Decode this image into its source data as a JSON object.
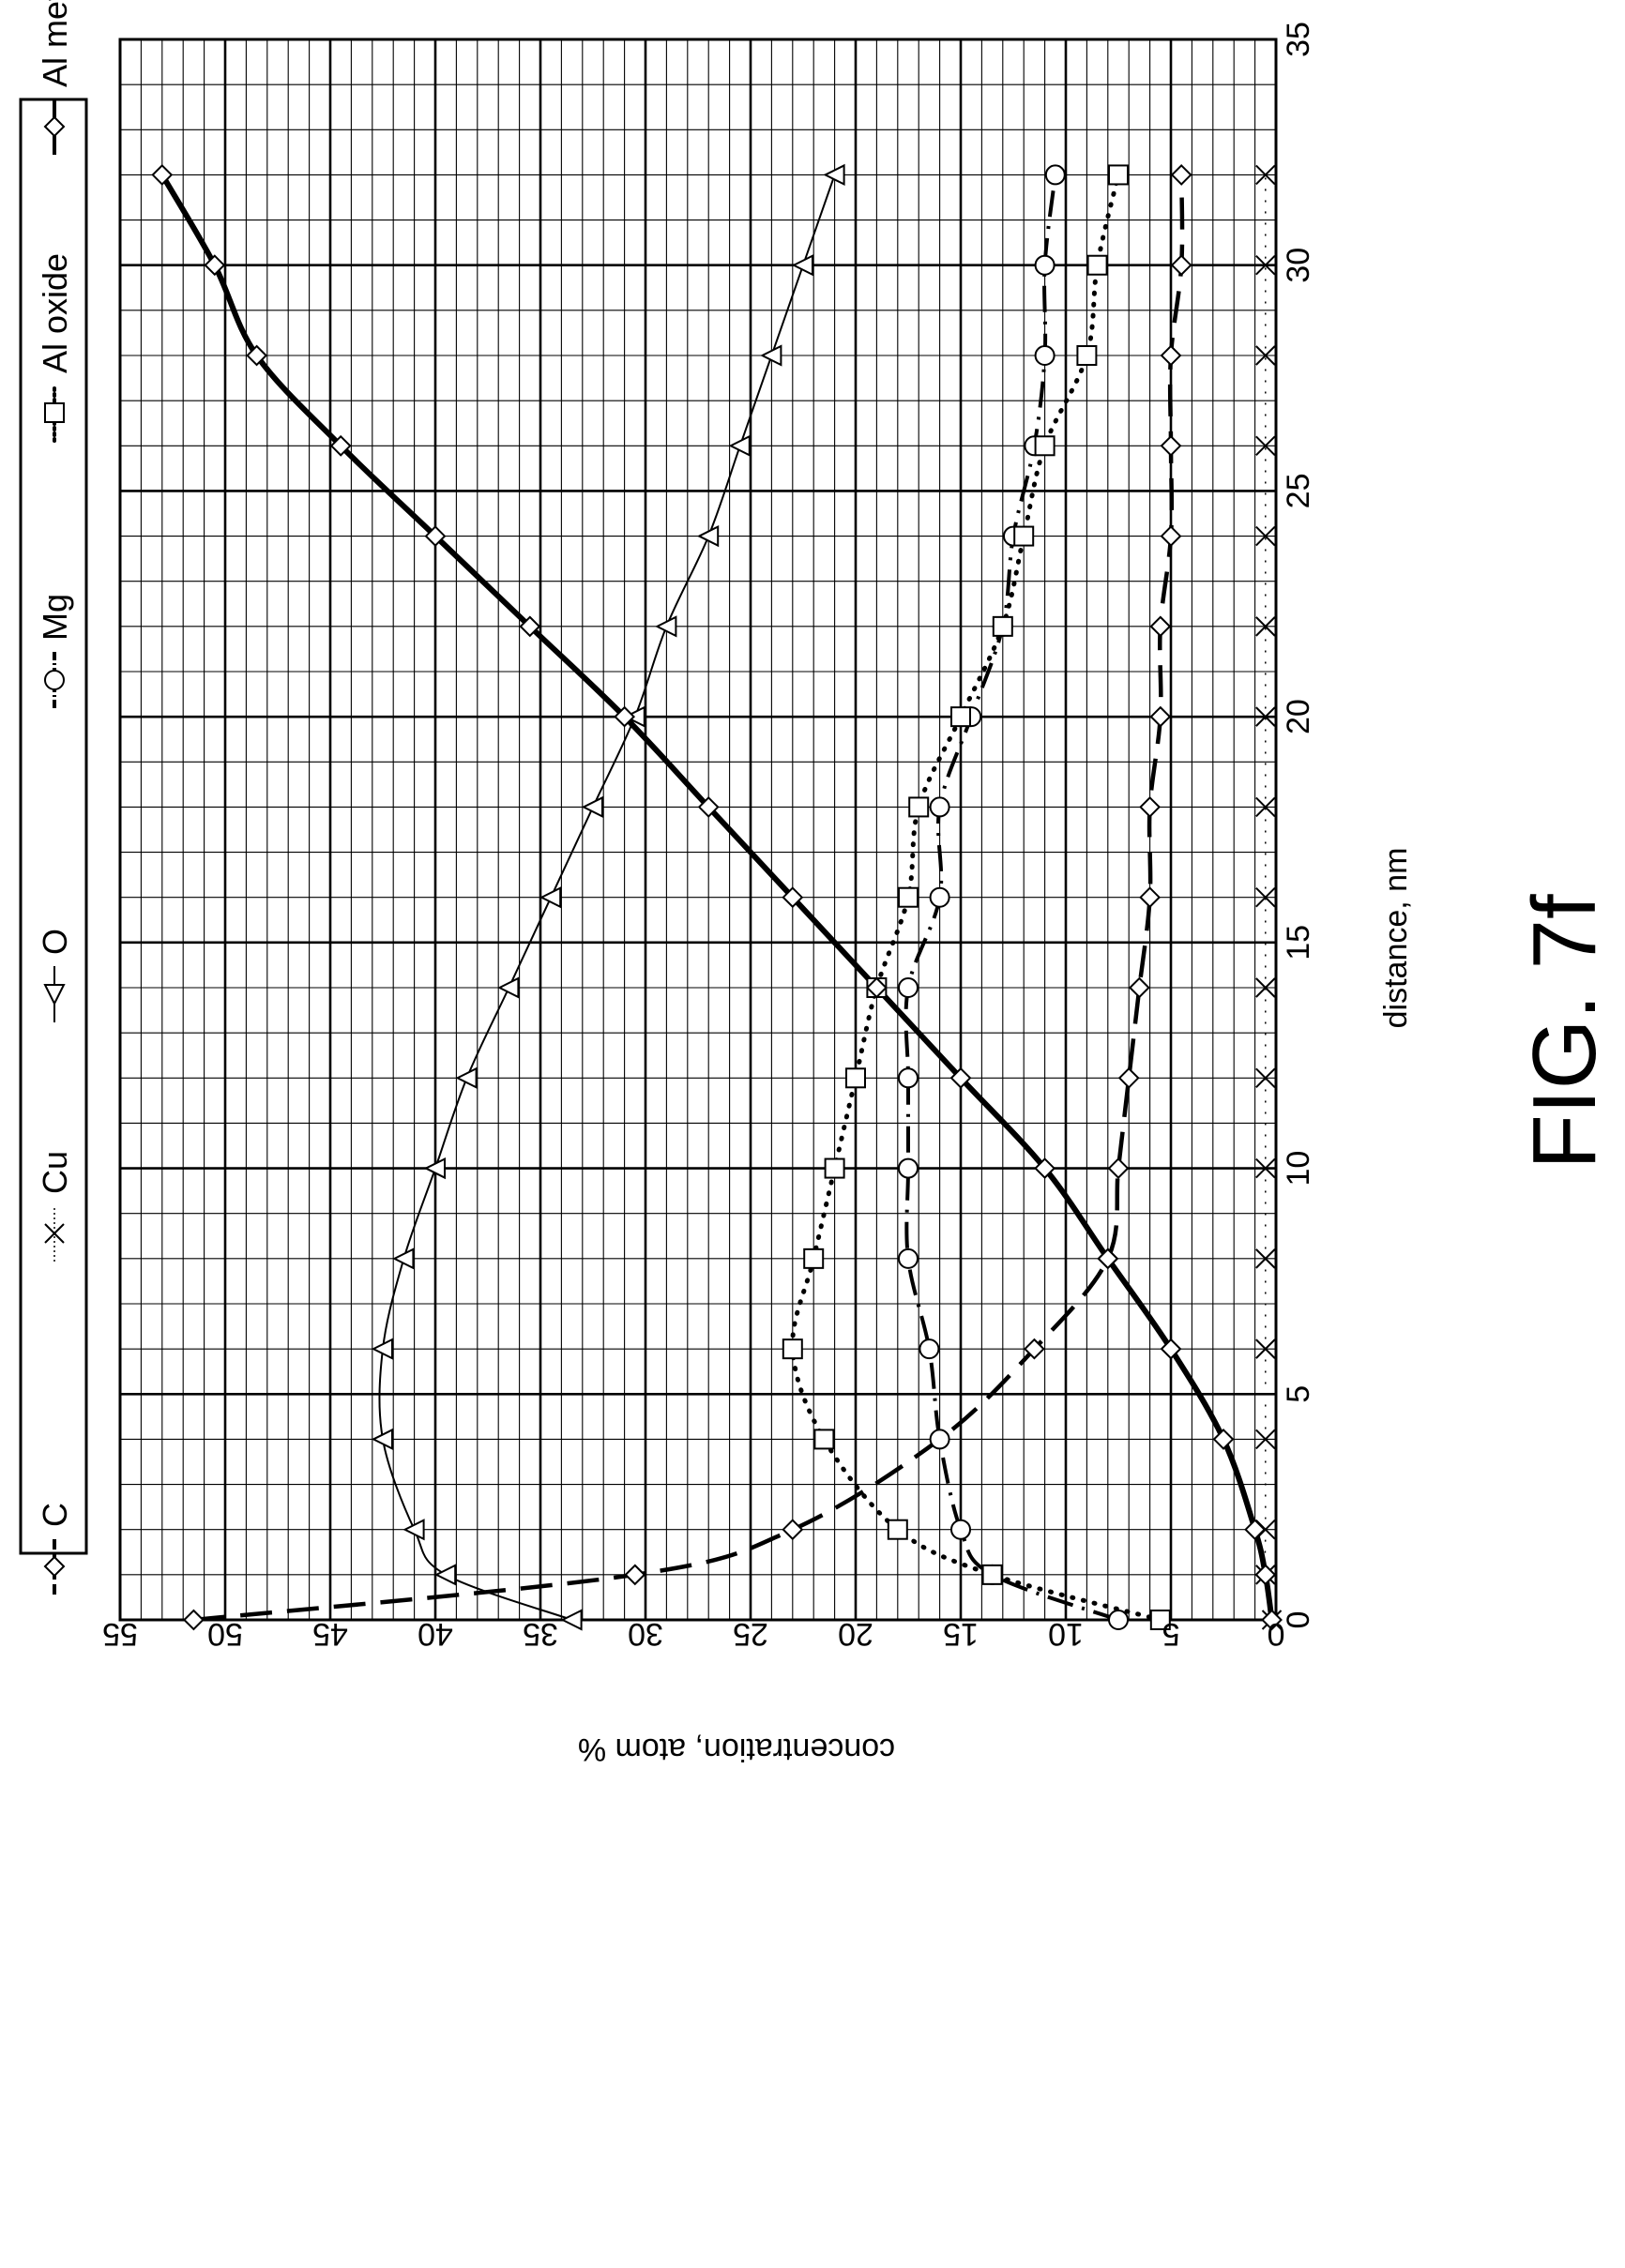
{
  "figure_label": "FIG. 7f",
  "chart_data": {
    "type": "line",
    "xlabel": "distance, nm",
    "ylabel": "concentration, atom %",
    "xlim": [
      0,
      35
    ],
    "ylim": [
      0,
      55
    ],
    "x_ticks": [
      "0",
      "5",
      "10",
      "15",
      "20",
      "25",
      "30",
      "35"
    ],
    "y_ticks": [
      "0",
      "5",
      "10",
      "15",
      "20",
      "25",
      "30",
      "35",
      "40",
      "45",
      "50",
      "55"
    ],
    "grid": true,
    "legend_position": "left",
    "series": [
      {
        "name": "C",
        "marker": "diamond",
        "line_style": "dashed",
        "points": [
          [
            0,
            51.5
          ],
          [
            1,
            30.5
          ],
          [
            2,
            23
          ],
          [
            4,
            16
          ],
          [
            6,
            11.5
          ],
          [
            8,
            8
          ],
          [
            10,
            7.5
          ],
          [
            12,
            7
          ],
          [
            14,
            6.5
          ],
          [
            16,
            6
          ],
          [
            18,
            6
          ],
          [
            20,
            5.5
          ],
          [
            22,
            5.5
          ],
          [
            24,
            5
          ],
          [
            26,
            5
          ],
          [
            28,
            5
          ],
          [
            30,
            4.5
          ],
          [
            32,
            4.5
          ]
        ]
      },
      {
        "name": "Cu",
        "marker": "x",
        "line_style": "dotted-thin",
        "points": [
          [
            0,
            0.2
          ],
          [
            1,
            0.5
          ],
          [
            2,
            0.5
          ],
          [
            4,
            0.5
          ],
          [
            6,
            0.5
          ],
          [
            8,
            0.5
          ],
          [
            10,
            0.5
          ],
          [
            12,
            0.5
          ],
          [
            14,
            0.5
          ],
          [
            16,
            0.5
          ],
          [
            18,
            0.5
          ],
          [
            20,
            0.5
          ],
          [
            22,
            0.5
          ],
          [
            24,
            0.5
          ],
          [
            26,
            0.5
          ],
          [
            28,
            0.5
          ],
          [
            30,
            0.5
          ],
          [
            32,
            0.5
          ]
        ]
      },
      {
        "name": "O",
        "marker": "triangle",
        "line_style": "solid-thin",
        "points": [
          [
            0,
            33.5
          ],
          [
            1,
            39.5
          ],
          [
            2,
            41
          ],
          [
            4,
            42.5
          ],
          [
            6,
            42.5
          ],
          [
            8,
            41.5
          ],
          [
            10,
            40
          ],
          [
            12,
            38.5
          ],
          [
            14,
            36.5
          ],
          [
            16,
            34.5
          ],
          [
            18,
            32.5
          ],
          [
            20,
            30.5
          ],
          [
            22,
            29
          ],
          [
            24,
            27
          ],
          [
            26,
            25.5
          ],
          [
            28,
            24
          ],
          [
            30,
            22.5
          ],
          [
            32,
            21
          ]
        ]
      },
      {
        "name": "Mg",
        "marker": "circle",
        "line_style": "dash-dot",
        "points": [
          [
            0,
            7.5
          ],
          [
            1,
            13.5
          ],
          [
            2,
            15
          ],
          [
            4,
            16
          ],
          [
            6,
            16.5
          ],
          [
            8,
            17.5
          ],
          [
            10,
            17.5
          ],
          [
            12,
            17.5
          ],
          [
            14,
            17.5
          ],
          [
            16,
            16
          ],
          [
            18,
            16
          ],
          [
            20,
            14.5
          ],
          [
            22,
            13
          ],
          [
            24,
            12.5
          ],
          [
            26,
            11.5
          ],
          [
            28,
            11
          ],
          [
            30,
            11
          ],
          [
            32,
            10.5
          ]
        ]
      },
      {
        "name": "Al oxide",
        "marker": "square",
        "line_style": "dotted",
        "points": [
          [
            0,
            5.5
          ],
          [
            1,
            13.5
          ],
          [
            2,
            18
          ],
          [
            4,
            21.5
          ],
          [
            6,
            23
          ],
          [
            8,
            22
          ],
          [
            10,
            21
          ],
          [
            12,
            20
          ],
          [
            14,
            19
          ],
          [
            16,
            17.5
          ],
          [
            18,
            17
          ],
          [
            20,
            15
          ],
          [
            22,
            13
          ],
          [
            24,
            12
          ],
          [
            26,
            11
          ],
          [
            28,
            9
          ],
          [
            30,
            8.5
          ],
          [
            32,
            7.5
          ]
        ]
      },
      {
        "name": "Al metal",
        "marker": "diamond",
        "line_style": "solid-thick",
        "points": [
          [
            0,
            0.2
          ],
          [
            1,
            0.5
          ],
          [
            2,
            1
          ],
          [
            4,
            2.5
          ],
          [
            6,
            5
          ],
          [
            8,
            8
          ],
          [
            10,
            11
          ],
          [
            12,
            15
          ],
          [
            14,
            19
          ],
          [
            16,
            23
          ],
          [
            18,
            27
          ],
          [
            20,
            31
          ],
          [
            22,
            35.5
          ],
          [
            24,
            40
          ],
          [
            26,
            44.5
          ],
          [
            28,
            48.5
          ],
          [
            30,
            50.5
          ],
          [
            32,
            53
          ]
        ]
      }
    ]
  }
}
